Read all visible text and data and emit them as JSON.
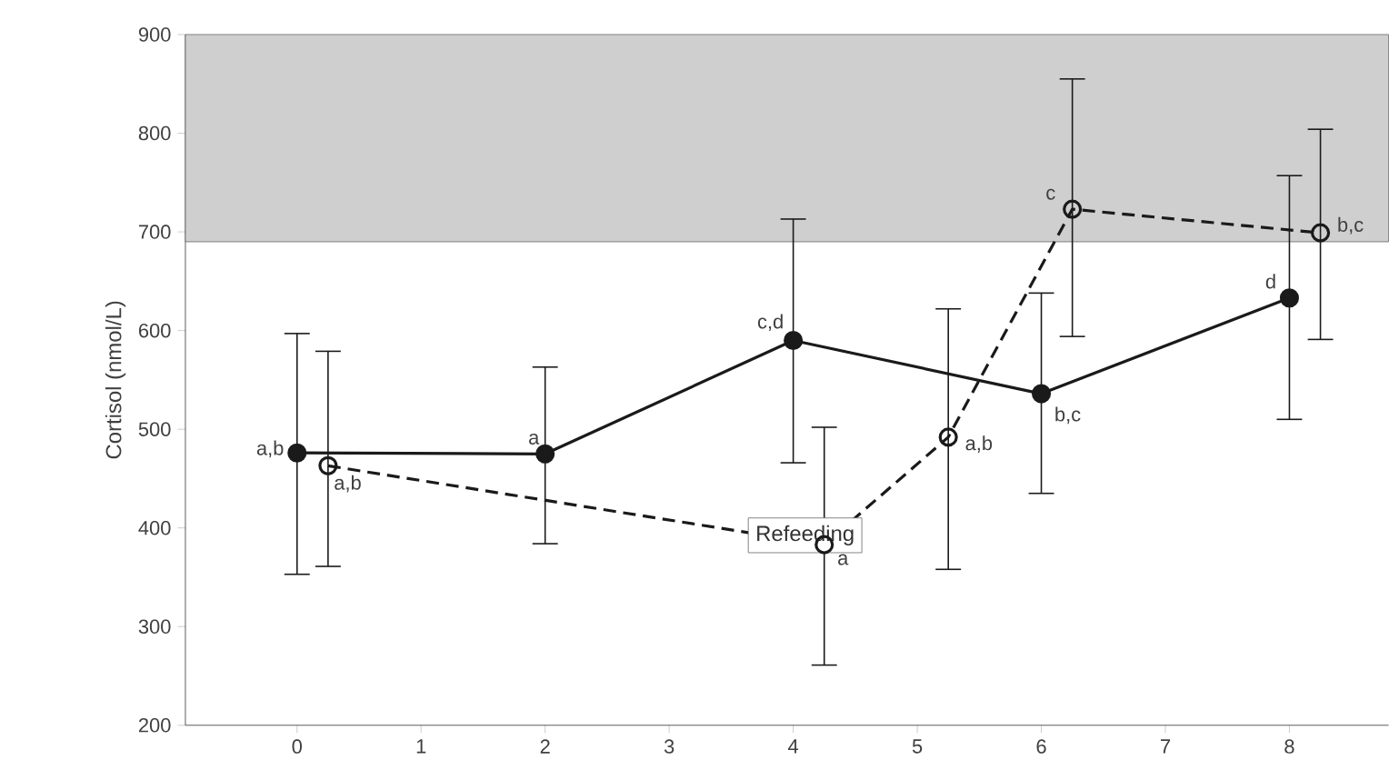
{
  "chart_data": {
    "type": "line",
    "ylabel": "Cortisol (nmol/L)",
    "xlim": [
      -0.9,
      8.8
    ],
    "xticks": [
      0,
      1,
      2,
      3,
      4,
      5,
      6,
      7,
      8
    ],
    "ylim": [
      200,
      900
    ],
    "yticks": [
      200,
      300,
      400,
      500,
      600,
      700,
      800,
      900
    ],
    "grid": false,
    "series": [
      {
        "x": [
          0,
          2,
          4,
          6,
          8
        ],
        "values": [
          476,
          475,
          590,
          536,
          633
        ],
        "errors": [
          [
            353,
            597
          ],
          [
            384,
            563
          ],
          [
            466,
            713
          ],
          [
            435,
            638
          ],
          [
            510,
            757
          ]
        ],
        "color": "#1a1a1a",
        "marker": "circle",
        "line_style": "solid"
      },
      {
        "x": [
          0.25,
          4.25,
          5.25,
          6.25,
          8.25
        ],
        "values": [
          463,
          383,
          492,
          723,
          699
        ],
        "errors": [
          [
            361,
            579
          ],
          [
            261,
            502
          ],
          [
            358,
            622
          ],
          [
            594,
            855
          ],
          [
            591,
            804
          ]
        ],
        "color": "#1a1a1a",
        "marker": "circle-open",
        "line_style": "dashed"
      }
    ],
    "bands": [
      {
        "axis": "y",
        "from": 690,
        "to": 900,
        "color": "#cfcfcf"
      }
    ],
    "annotations": [
      {
        "text": "a,b",
        "x": 0,
        "y": 476
      },
      {
        "text": "a",
        "x": 2,
        "y": 475
      },
      {
        "text": "c,d",
        "x": 4,
        "y": 590
      },
      {
        "text": "b,c",
        "x": 6,
        "y": 536
      },
      {
        "text": "d",
        "x": 8,
        "y": 633
      },
      {
        "text": "a,b",
        "x": 0.25,
        "y": 463
      },
      {
        "text": "a",
        "x": 4.25,
        "y": 383
      },
      {
        "text": "a,b",
        "x": 5.25,
        "y": 492
      },
      {
        "text": "c",
        "x": 6.25,
        "y": 723
      },
      {
        "text": "b,c",
        "x": 8.25,
        "y": 699
      },
      "Refeeding"
    ]
  }
}
